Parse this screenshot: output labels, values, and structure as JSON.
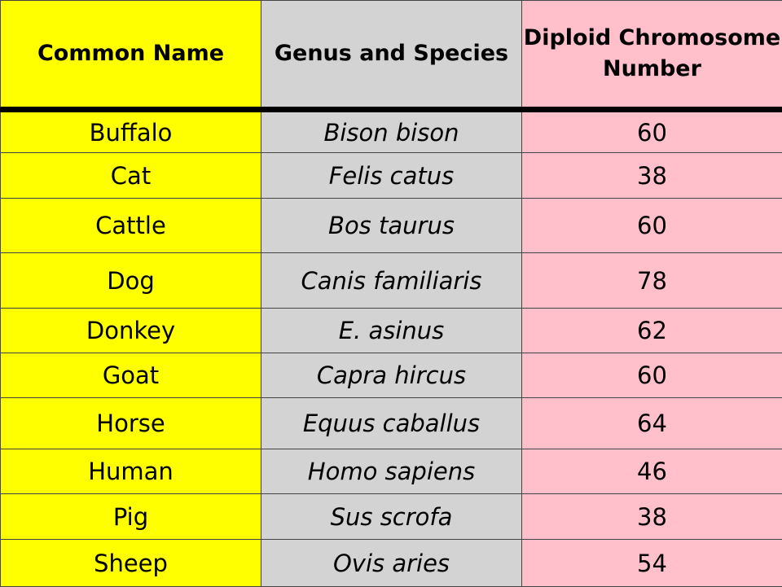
{
  "table": {
    "headers": {
      "common_name": "Common Name",
      "genus_species": "Genus and Species",
      "chromosome_line1": "Diploid Chromosome",
      "chromosome_line2": "Number"
    },
    "rows": [
      {
        "common": "Buffalo",
        "species": "Bison bison",
        "number": "60"
      },
      {
        "common": "Cat",
        "species": "Felis catus",
        "number": "38"
      },
      {
        "common": "Cattle",
        "species": "Bos taurus",
        "number": "60"
      },
      {
        "common": "Dog",
        "species": "Canis familiaris",
        "number": "78"
      },
      {
        "common": "Donkey",
        "species": "E. asinus",
        "number": "62"
      },
      {
        "common": "Goat",
        "species": "Capra hircus",
        "number": "60"
      },
      {
        "common": "Horse",
        "species": "Equus caballus",
        "number": "64"
      },
      {
        "common": "Human",
        "species": "Homo sapiens",
        "number": "46"
      },
      {
        "common": "Pig",
        "species": "Sus scrofa",
        "number": "38"
      },
      {
        "common": "Sheep",
        "species": "Ovis aries",
        "number": "54"
      }
    ]
  },
  "colors": {
    "common_column": "#ffff00",
    "species_column": "#d3d3d3",
    "chromosome_column": "#ffc0cb",
    "header_rule": "#000000"
  }
}
